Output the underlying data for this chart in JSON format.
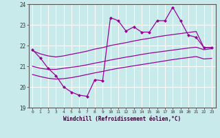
{
  "xlabel": "Windchill (Refroidissement éolien,°C)",
  "bg_color": "#c8eaea",
  "line_color": "#990099",
  "grid_color": "#aadddd",
  "xlim_min": -0.5,
  "xlim_max": 23.5,
  "ylim_min": 19,
  "ylim_max": 24,
  "yticks": [
    19,
    20,
    21,
    22,
    23,
    24
  ],
  "xticks": [
    0,
    1,
    2,
    3,
    4,
    5,
    6,
    7,
    8,
    9,
    10,
    11,
    12,
    13,
    14,
    15,
    16,
    17,
    18,
    19,
    20,
    21,
    22,
    23
  ],
  "line1_x": [
    0,
    1,
    2,
    3,
    4,
    5,
    6,
    7,
    8,
    9,
    10,
    11,
    12,
    13,
    14,
    15,
    16,
    17,
    18,
    19,
    20,
    21,
    22,
    23
  ],
  "line1_y": [
    21.8,
    21.4,
    20.9,
    20.55,
    20.0,
    19.75,
    19.6,
    19.55,
    20.35,
    20.3,
    23.35,
    23.2,
    22.7,
    22.9,
    22.65,
    22.65,
    23.2,
    23.2,
    23.85,
    23.2,
    22.5,
    22.4,
    21.9,
    21.9
  ],
  "line2_x": [
    0,
    1,
    2,
    3,
    4,
    5,
    6,
    7,
    8,
    9,
    10,
    11,
    12,
    13,
    14,
    15,
    16,
    17,
    18,
    19,
    20,
    21,
    22,
    23
  ],
  "line2_y": [
    21.75,
    21.6,
    21.5,
    21.45,
    21.5,
    21.58,
    21.65,
    21.73,
    21.83,
    21.9,
    22.0,
    22.07,
    22.14,
    22.22,
    22.29,
    22.35,
    22.42,
    22.48,
    22.53,
    22.58,
    22.63,
    22.68,
    21.9,
    21.9
  ],
  "line3_x": [
    0,
    1,
    2,
    3,
    4,
    5,
    6,
    7,
    8,
    9,
    10,
    11,
    12,
    13,
    14,
    15,
    16,
    17,
    18,
    19,
    20,
    21,
    22,
    23
  ],
  "line3_y": [
    21.0,
    20.9,
    20.85,
    20.85,
    20.9,
    20.95,
    21.0,
    21.07,
    21.15,
    21.22,
    21.3,
    21.37,
    21.44,
    21.5,
    21.57,
    21.63,
    21.68,
    21.73,
    21.78,
    21.83,
    21.88,
    21.92,
    21.8,
    21.85
  ],
  "line4_x": [
    0,
    1,
    2,
    3,
    4,
    5,
    6,
    7,
    8,
    9,
    10,
    11,
    12,
    13,
    14,
    15,
    16,
    17,
    18,
    19,
    20,
    21,
    22,
    23
  ],
  "line4_y": [
    20.6,
    20.5,
    20.42,
    20.38,
    20.4,
    20.45,
    20.52,
    20.6,
    20.68,
    20.75,
    20.83,
    20.9,
    20.96,
    21.02,
    21.08,
    21.14,
    21.2,
    21.26,
    21.32,
    21.37,
    21.42,
    21.47,
    21.35,
    21.38
  ]
}
